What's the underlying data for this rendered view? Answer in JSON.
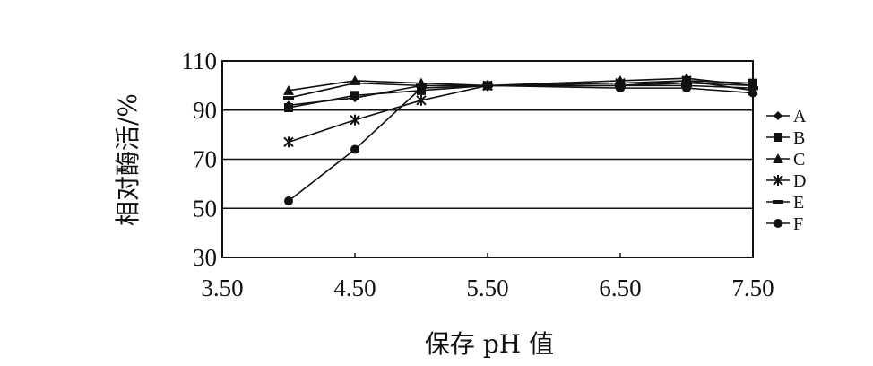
{
  "chart_data": {
    "type": "line",
    "title": "",
    "xlabel": "保存 pH 值",
    "ylabel": "相对酶活/%",
    "xlim": [
      3.5,
      7.5
    ],
    "ylim": [
      30,
      110
    ],
    "x_ticks": [
      "3.50",
      "4.50",
      "5.50",
      "6.50",
      "7.50"
    ],
    "y_ticks": [
      "30",
      "50",
      "70",
      "90",
      "110"
    ],
    "grid": "horizontal",
    "legend_position": "right",
    "x": [
      4.0,
      4.5,
      5.0,
      5.5,
      6.5,
      7.0,
      7.5
    ],
    "series": [
      {
        "name": "A",
        "marker": "diamond",
        "values": [
          92,
          95,
          100,
          100,
          100,
          101,
          100
        ]
      },
      {
        "name": "B",
        "marker": "square",
        "values": [
          91,
          96,
          98,
          100,
          100,
          102,
          101
        ]
      },
      {
        "name": "C",
        "marker": "triangle",
        "values": [
          98,
          102,
          101,
          100,
          102,
          103,
          100
        ]
      },
      {
        "name": "D",
        "marker": "cross",
        "values": [
          77,
          86,
          94,
          100,
          101,
          102,
          98
        ]
      },
      {
        "name": "E",
        "marker": "dash",
        "values": [
          95,
          101,
          100,
          100,
          100,
          100,
          99
        ]
      },
      {
        "name": "F",
        "marker": "circle",
        "values": [
          53,
          74,
          99,
          100,
          99,
          99,
          97
        ]
      }
    ]
  }
}
